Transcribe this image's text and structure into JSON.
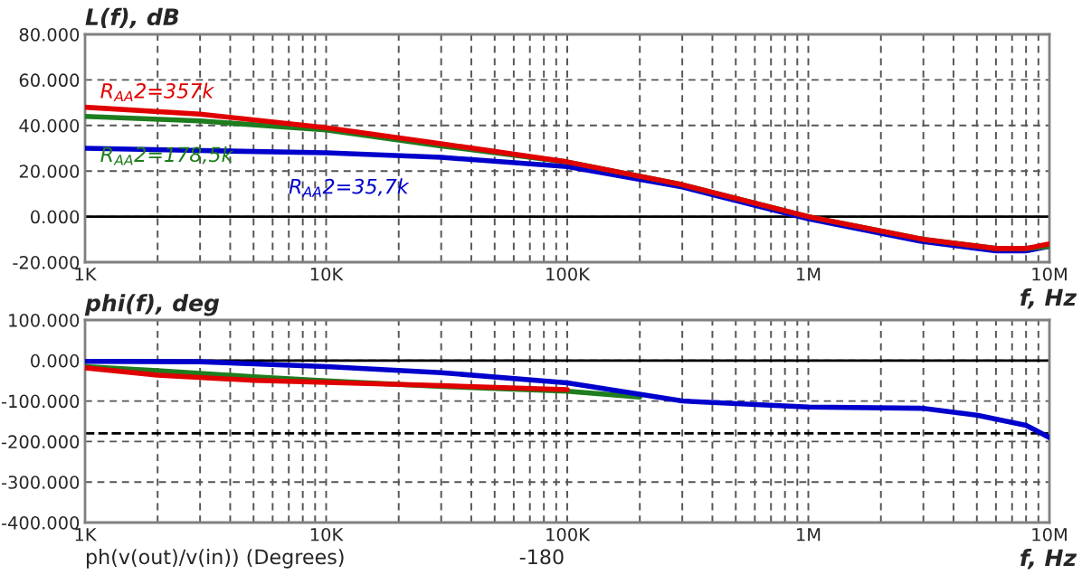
{
  "chart_data": [
    {
      "type": "line",
      "title": "L(f), dB",
      "xlabel": "f, Hz",
      "log": "x",
      "grid": true,
      "legend": false,
      "marker": "none",
      "line_style": "solid",
      "xlim": [
        1000,
        10000000
      ],
      "xticks": [
        {
          "value": 1000,
          "label": "1K"
        },
        {
          "value": 10000,
          "label": "10K"
        },
        {
          "value": 100000,
          "label": "100K"
        },
        {
          "value": 1000000,
          "label": "1M"
        },
        {
          "value": 10000000,
          "label": "10M"
        }
      ],
      "ylim": [
        -20,
        80
      ],
      "yticks": [
        {
          "value": -20,
          "label": "-20.000"
        },
        {
          "value": 0,
          "label": "0.000"
        },
        {
          "value": 20,
          "label": "20.000"
        },
        {
          "value": 40,
          "label": "40.000"
        },
        {
          "value": 60,
          "label": "60.000"
        },
        {
          "value": 80,
          "label": "80.000"
        }
      ],
      "ref_lines": [
        {
          "axis": "y",
          "value": 0,
          "color": "#000000",
          "line_style": "solid"
        }
      ],
      "series": [
        {
          "name": "R$_{AA}$2=35,7k",
          "color": "#0000cc",
          "x": [
            1000,
            3000,
            10000,
            30000,
            100000,
            300000,
            1000000,
            3000000,
            6000000,
            8000000,
            10000000
          ],
          "values": [
            30,
            29,
            28,
            26,
            22,
            13,
            -1,
            -11,
            -15,
            -15,
            -13
          ]
        },
        {
          "name": "R$_{AA}$2=178,5k",
          "color": "#1e7d1e",
          "x": [
            1000,
            3000,
            10000,
            30000,
            100000,
            300000,
            1000000,
            3000000,
            6000000,
            8000000,
            10000000
          ],
          "values": [
            44,
            42,
            38,
            31,
            24,
            14,
            0,
            -10,
            -14,
            -14,
            -13
          ]
        },
        {
          "name": "R$_{AA}$2=357k",
          "color": "#e00000",
          "x": [
            1000,
            3000,
            10000,
            30000,
            100000,
            300000,
            1000000,
            3000000,
            6000000,
            8000000,
            10000000
          ],
          "values": [
            48,
            45,
            39,
            32,
            24,
            14,
            0,
            -10,
            -14,
            -14,
            -12
          ]
        }
      ]
    },
    {
      "type": "line",
      "title": "phi(f), deg",
      "xlabel": "f, Hz",
      "log": "x",
      "grid": true,
      "legend": false,
      "marker": "none",
      "line_style": "solid",
      "xlim": [
        1000,
        10000000
      ],
      "xticks": [
        {
          "value": 1000,
          "label": "1K"
        },
        {
          "value": 10000,
          "label": "10K"
        },
        {
          "value": 100000,
          "label": "100K"
        },
        {
          "value": 1000000,
          "label": "1M"
        },
        {
          "value": 10000000,
          "label": "10M"
        }
      ],
      "ylim": [
        -400,
        100
      ],
      "yticks": [
        {
          "value": -400,
          "label": "-400.000"
        },
        {
          "value": -300,
          "label": "-300.000"
        },
        {
          "value": -200,
          "label": "-200.000"
        },
        {
          "value": -100,
          "label": "-100.000"
        },
        {
          "value": 0,
          "label": "0.000"
        },
        {
          "value": 100,
          "label": "100.000"
        }
      ],
      "ref_lines": [
        {
          "axis": "y",
          "value": 0,
          "color": "#000000",
          "line_style": "solid"
        },
        {
          "axis": "y",
          "value": -180,
          "color": "#000000",
          "line_style": "dashed"
        }
      ],
      "annotations": [
        "ph(v(out)/v(in)) (Degrees)",
        "-180"
      ],
      "series": [
        {
          "color": "#1e7d1e",
          "x": [
            1000,
            2000,
            5000,
            10000,
            30000,
            100000,
            200000
          ],
          "values": [
            -15,
            -25,
            -40,
            -50,
            -64,
            -76,
            -90
          ]
        },
        {
          "color": "#e00000",
          "x": [
            1000,
            2000,
            5000,
            10000,
            30000,
            100000
          ],
          "values": [
            -18,
            -36,
            -49,
            -54,
            -62,
            -72
          ]
        },
        {
          "color": "#0000cc",
          "x": [
            1000,
            3000,
            10000,
            30000,
            100000,
            300000,
            1000000,
            3000000,
            5000000,
            8000000,
            10000000
          ],
          "values": [
            -2,
            -3,
            -15,
            -30,
            -55,
            -100,
            -115,
            -118,
            -135,
            -160,
            -190
          ]
        }
      ]
    }
  ]
}
